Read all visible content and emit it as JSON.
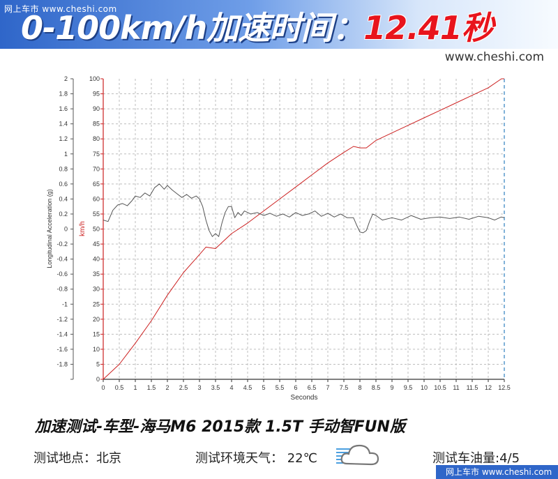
{
  "header": {
    "watermark": "网上车市 www.cheshi.com",
    "headline_prefix": "0-100km/h加速时间：",
    "headline_value": "12.41",
    "headline_unit": "秒",
    "site": "www.cheshi.com"
  },
  "caption": {
    "title": "加速测试-车型-海马M6 2015款 1.5T 手动智FUN版",
    "location": "测试地点：北京",
    "weather": "测试环境天气： 22℃",
    "fuel": "测试车油量:4/5"
  },
  "footer": {
    "watermark": "网上车市 www.cheshi.com"
  },
  "weather_icon": "cloud-icon",
  "colors": {
    "speed_line": "#cc2020",
    "accel_line": "#555555",
    "grid": "#bdbdbd",
    "accent_red": "#e8141c",
    "banner_blue": "#2f66c9"
  },
  "chart_data": {
    "type": "line",
    "title": "",
    "xlabel": "Seconds",
    "ylabel_left": "Longitudinal Acceleration (g)",
    "ylabel_right": "km/h",
    "xlim": [
      0,
      12.5
    ],
    "ylim_left": [
      -2,
      2
    ],
    "ylim_right": [
      0,
      100
    ],
    "grid": true,
    "legend": "none",
    "x_ticks": [
      "0",
      "0.5",
      "1",
      "1.5",
      "2",
      "2.5",
      "3",
      "3.5",
      "4",
      "4.5",
      "5",
      "5.5",
      "6",
      "6.5",
      "7",
      "7.5",
      "8",
      "8.5",
      "9",
      "9.5",
      "10",
      "10.5",
      "11",
      "11.5",
      "12",
      "12.5"
    ],
    "y_ticks_left": [
      "2",
      "1.8",
      "1.6",
      "1.4",
      "1.2",
      "1",
      "0.8",
      "0.6",
      "0.4",
      "0.2",
      "0",
      "-0.2",
      "-0.4",
      "-0.6",
      "-0.8",
      "-1",
      "-1.2",
      "-1.4",
      "-1.6",
      "-1.8",
      ""
    ],
    "y_ticks_right": [
      "100",
      "95",
      "90",
      "85",
      "80",
      "75",
      "70",
      "65",
      "60",
      "55",
      "50",
      "45",
      "40",
      "35",
      "30",
      "25",
      "20",
      "15",
      "10",
      "5",
      "0"
    ],
    "series": [
      {
        "axis": "right",
        "x": [
          0,
          0.5,
          1.0,
          1.5,
          2.0,
          2.5,
          3.0,
          3.2,
          3.5,
          3.7,
          4.0,
          4.5,
          5.0,
          5.5,
          6.0,
          6.5,
          7.0,
          7.5,
          7.8,
          8.0,
          8.2,
          8.5,
          9.0,
          9.5,
          10.0,
          10.5,
          11.0,
          11.5,
          12.0,
          12.41,
          12.5
        ],
        "values": [
          0,
          5,
          12,
          19.5,
          28,
          35.5,
          41.5,
          44,
          43.5,
          45.5,
          48.5,
          52,
          56,
          60,
          64,
          68,
          72,
          75.5,
          77.5,
          77,
          77,
          79.5,
          82,
          84.5,
          87,
          89.5,
          92,
          94.5,
          97,
          100,
          100
        ]
      },
      {
        "axis": "left",
        "x": [
          0,
          0.15,
          0.3,
          0.45,
          0.6,
          0.75,
          0.9,
          1.0,
          1.15,
          1.3,
          1.45,
          1.6,
          1.75,
          1.9,
          2.0,
          2.15,
          2.3,
          2.45,
          2.6,
          2.75,
          2.9,
          3.0,
          3.1,
          3.2,
          3.3,
          3.4,
          3.5,
          3.6,
          3.7,
          3.8,
          3.9,
          4.0,
          4.1,
          4.2,
          4.3,
          4.4,
          4.6,
          4.8,
          5.0,
          5.2,
          5.4,
          5.6,
          5.8,
          6.0,
          6.2,
          6.4,
          6.6,
          6.8,
          7.0,
          7.2,
          7.4,
          7.6,
          7.8,
          7.9,
          8.0,
          8.1,
          8.2,
          8.3,
          8.4,
          8.5,
          8.7,
          9.0,
          9.3,
          9.6,
          9.9,
          10.2,
          10.5,
          10.8,
          11.1,
          11.4,
          11.7,
          12.0,
          12.2,
          12.4,
          12.5
        ],
        "values": [
          0.12,
          0.1,
          0.25,
          0.32,
          0.34,
          0.31,
          0.38,
          0.44,
          0.42,
          0.48,
          0.44,
          0.55,
          0.6,
          0.53,
          0.58,
          0.52,
          0.47,
          0.42,
          0.46,
          0.41,
          0.44,
          0.4,
          0.3,
          0.12,
          -0.02,
          -0.1,
          -0.06,
          -0.1,
          0.08,
          0.22,
          0.3,
          0.3,
          0.15,
          0.22,
          0.18,
          0.24,
          0.2,
          0.22,
          0.18,
          0.21,
          0.17,
          0.2,
          0.16,
          0.22,
          0.18,
          0.2,
          0.24,
          0.17,
          0.21,
          0.16,
          0.2,
          0.15,
          0.15,
          0.05,
          -0.04,
          -0.05,
          -0.02,
          0.1,
          0.2,
          0.18,
          0.12,
          0.15,
          0.12,
          0.18,
          0.13,
          0.15,
          0.16,
          0.14,
          0.16,
          0.13,
          0.17,
          0.15,
          0.12,
          0.16,
          0.15
        ]
      }
    ]
  }
}
